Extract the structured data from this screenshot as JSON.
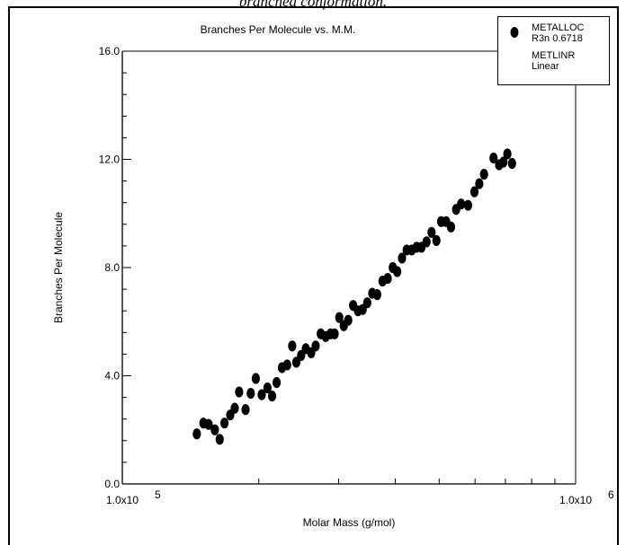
{
  "caption": "branched conformation.",
  "chart_data": {
    "type": "scatter",
    "title": "Branches Per Molecule vs. M.M.",
    "xlabel": "Molar Mass (g/mol)",
    "ylabel": "Branches Per Molecule",
    "x_scale": "log",
    "xlim": [
      100000,
      1000000
    ],
    "ylim": [
      0,
      16
    ],
    "y_ticks": [
      "0.0",
      "4.0",
      "8.0",
      "12.0",
      "16.0"
    ],
    "x_tick_labels": [
      {
        "base": "1.0x10",
        "exp": "5"
      },
      {
        "base": "1.0x10",
        "exp": "6"
      }
    ],
    "grid": false,
    "legend_position": "top-right",
    "legend": [
      {
        "name": "METALLOC",
        "detail": "R3n 0.6718",
        "marker": "filled-ellipse"
      },
      {
        "name": "METLINR",
        "detail": "Linear",
        "marker": "none"
      }
    ],
    "series": [
      {
        "name": "METALLOC",
        "color": "#000000",
        "points": [
          [
            146000,
            1.85
          ],
          [
            151000,
            2.25
          ],
          [
            155000,
            2.2
          ],
          [
            160000,
            2.0
          ],
          [
            164000,
            1.65
          ],
          [
            168000,
            2.25
          ],
          [
            173000,
            2.55
          ],
          [
            177000,
            2.8
          ],
          [
            181000,
            3.4
          ],
          [
            187000,
            2.75
          ],
          [
            192000,
            3.35
          ],
          [
            197000,
            3.9
          ],
          [
            203000,
            3.3
          ],
          [
            209000,
            3.55
          ],
          [
            214000,
            3.25
          ],
          [
            219000,
            3.75
          ],
          [
            225000,
            4.3
          ],
          [
            231000,
            4.4
          ],
          [
            237000,
            5.1
          ],
          [
            242000,
            4.5
          ],
          [
            248000,
            4.75
          ],
          [
            254000,
            5.0
          ],
          [
            261000,
            4.85
          ],
          [
            267000,
            5.1
          ],
          [
            274000,
            5.55
          ],
          [
            281000,
            5.45
          ],
          [
            288000,
            5.55
          ],
          [
            294000,
            5.55
          ],
          [
            301000,
            6.15
          ],
          [
            308000,
            5.85
          ],
          [
            315000,
            6.05
          ],
          [
            323000,
            6.6
          ],
          [
            331000,
            6.4
          ],
          [
            339000,
            6.45
          ],
          [
            347000,
            6.7
          ],
          [
            356000,
            7.05
          ],
          [
            365000,
            7.0
          ],
          [
            375000,
            7.5
          ],
          [
            385000,
            7.6
          ],
          [
            395000,
            8.0
          ],
          [
            404000,
            7.85
          ],
          [
            414000,
            8.35
          ],
          [
            424000,
            8.65
          ],
          [
            435000,
            8.65
          ],
          [
            446000,
            8.75
          ],
          [
            457000,
            8.75
          ],
          [
            469000,
            8.95
          ],
          [
            481000,
            9.3
          ],
          [
            493000,
            9.0
          ],
          [
            505000,
            9.7
          ],
          [
            518000,
            9.7
          ],
          [
            531000,
            9.5
          ],
          [
            545000,
            10.15
          ],
          [
            559000,
            10.35
          ],
          [
            579000,
            10.3
          ],
          [
            598000,
            10.8
          ],
          [
            613000,
            11.1
          ],
          [
            628000,
            11.45
          ],
          [
            659000,
            12.05
          ],
          [
            678000,
            11.8
          ],
          [
            693000,
            11.9
          ],
          [
            707000,
            12.2
          ],
          [
            724000,
            11.85
          ]
        ]
      }
    ]
  }
}
